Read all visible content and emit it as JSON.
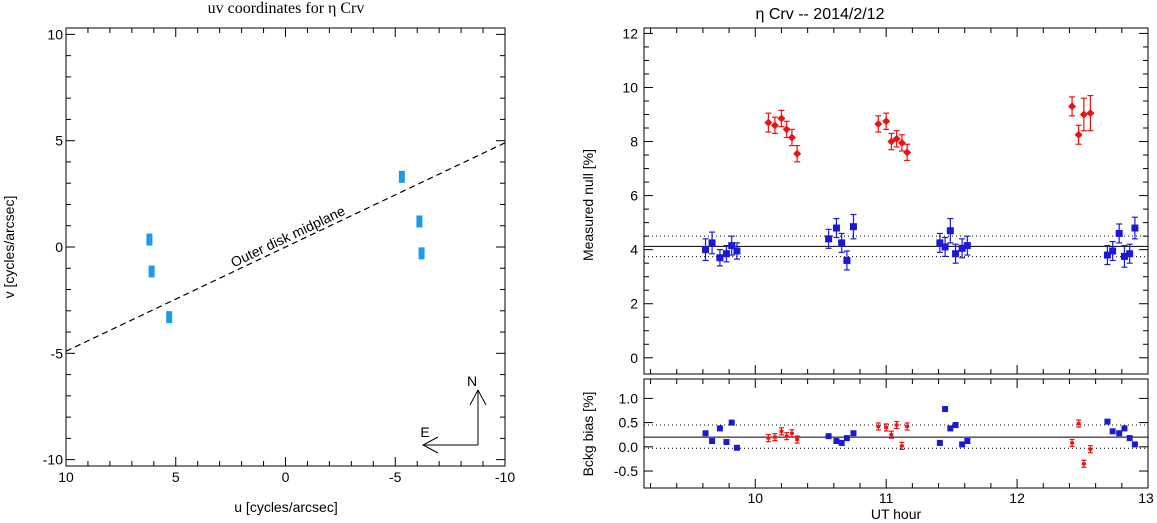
{
  "chart_data": [
    {
      "type": "scatter",
      "title": "uv coordinates for η Crv",
      "xlabel": "u [cycles/arcsec]",
      "ylabel": "v [cycles/arcsec]",
      "xlim": [
        10,
        -10
      ],
      "ylim": [
        -10.3,
        10.3
      ],
      "xticks": [
        "10",
        "5",
        "0",
        "-5",
        "-10"
      ],
      "yticks": [
        "10",
        "5",
        "0",
        "-5",
        "-10"
      ],
      "color": "#1f9be6",
      "points": [
        {
          "x": 6.2,
          "y": 0.35
        },
        {
          "x": 6.1,
          "y": -1.15
        },
        {
          "x": 5.3,
          "y": -3.3
        },
        {
          "x": -5.3,
          "y": 3.3
        },
        {
          "x": -6.1,
          "y": 1.2
        },
        {
          "x": -6.2,
          "y": -0.3
        }
      ],
      "midplane": {
        "label": "Outer disk midplane",
        "x": [
          10,
          -10
        ],
        "y": [
          -4.9,
          4.9
        ]
      },
      "compass": {
        "north": "N",
        "east": "E"
      }
    },
    {
      "type": "scatter",
      "title": "η Crv -- 2014/2/12",
      "xlabel": "UT hour",
      "ylabel": "Measured null [%]",
      "xlim": [
        9.15,
        13.0
      ],
      "ylim": [
        -0.6,
        12.2
      ],
      "xticks": [
        "10",
        "11",
        "12",
        "13"
      ],
      "yticks": [
        "0",
        "2",
        "4",
        "6",
        "8",
        "10",
        "12"
      ],
      "reference_lines": {
        "solid": 4.12,
        "dotted": [
          3.74,
          4.5
        ]
      },
      "series": [
        {
          "color": "#ee1111",
          "points": [
            {
              "x": 10.1,
              "y": 8.7,
              "err": 0.35
            },
            {
              "x": 10.15,
              "y": 8.6,
              "err": 0.3
            },
            {
              "x": 10.2,
              "y": 8.85,
              "err": 0.3
            },
            {
              "x": 10.24,
              "y": 8.45,
              "err": 0.3
            },
            {
              "x": 10.28,
              "y": 8.15,
              "err": 0.3
            },
            {
              "x": 10.32,
              "y": 7.55,
              "err": 0.3
            },
            {
              "x": 10.94,
              "y": 8.65,
              "err": 0.3
            },
            {
              "x": 11.0,
              "y": 8.75,
              "err": 0.3
            },
            {
              "x": 11.04,
              "y": 8.0,
              "err": 0.3
            },
            {
              "x": 11.08,
              "y": 8.1,
              "err": 0.3
            },
            {
              "x": 11.12,
              "y": 7.95,
              "err": 0.3
            },
            {
              "x": 11.16,
              "y": 7.6,
              "err": 0.3
            },
            {
              "x": 12.42,
              "y": 9.3,
              "err": 0.35
            },
            {
              "x": 12.47,
              "y": 8.25,
              "err": 0.35
            },
            {
              "x": 12.51,
              "y": 9.0,
              "err": 0.6
            },
            {
              "x": 12.56,
              "y": 9.05,
              "err": 0.65
            }
          ]
        },
        {
          "color": "#1a1ad6",
          "points": [
            {
              "x": 9.62,
              "y": 4.0,
              "err": 0.4
            },
            {
              "x": 9.67,
              "y": 4.25,
              "err": 0.4
            },
            {
              "x": 9.73,
              "y": 3.7,
              "err": 0.3
            },
            {
              "x": 9.78,
              "y": 3.85,
              "err": 0.3
            },
            {
              "x": 9.82,
              "y": 4.15,
              "err": 0.35
            },
            {
              "x": 9.86,
              "y": 3.95,
              "err": 0.3
            },
            {
              "x": 10.56,
              "y": 4.4,
              "err": 0.35
            },
            {
              "x": 10.62,
              "y": 4.8,
              "err": 0.35
            },
            {
              "x": 10.66,
              "y": 4.25,
              "err": 0.35
            },
            {
              "x": 10.7,
              "y": 3.6,
              "err": 0.35
            },
            {
              "x": 10.75,
              "y": 4.85,
              "err": 0.45
            },
            {
              "x": 11.41,
              "y": 4.25,
              "err": 0.35
            },
            {
              "x": 11.45,
              "y": 4.1,
              "err": 0.35
            },
            {
              "x": 11.49,
              "y": 4.7,
              "err": 0.45
            },
            {
              "x": 11.53,
              "y": 3.85,
              "err": 0.35
            },
            {
              "x": 11.58,
              "y": 4.05,
              "err": 0.35
            },
            {
              "x": 11.62,
              "y": 4.15,
              "err": 0.35
            },
            {
              "x": 12.69,
              "y": 3.8,
              "err": 0.35
            },
            {
              "x": 12.73,
              "y": 3.95,
              "err": 0.35
            },
            {
              "x": 12.78,
              "y": 4.6,
              "err": 0.35
            },
            {
              "x": 12.82,
              "y": 3.75,
              "err": 0.4
            },
            {
              "x": 12.86,
              "y": 3.85,
              "err": 0.35
            },
            {
              "x": 12.9,
              "y": 4.8,
              "err": 0.4
            }
          ]
        }
      ]
    },
    {
      "type": "scatter",
      "xlabel": "UT hour",
      "ylabel": "Bckg bias [%]",
      "xlim": [
        9.15,
        13.0
      ],
      "ylim": [
        -0.85,
        1.4
      ],
      "xticks": [
        "10",
        "11",
        "12",
        "13"
      ],
      "yticks": [
        "1.0",
        "0.5",
        "0.0",
        "-0.5"
      ],
      "reference_lines": {
        "solid": 0.2,
        "dotted": [
          0.45,
          -0.03
        ]
      },
      "series": [
        {
          "color": "#1a1ad6",
          "points": [
            {
              "x": 9.62,
              "y": 0.28
            },
            {
              "x": 9.67,
              "y": 0.12
            },
            {
              "x": 9.73,
              "y": 0.38
            },
            {
              "x": 9.78,
              "y": 0.1
            },
            {
              "x": 9.82,
              "y": 0.5
            },
            {
              "x": 9.86,
              "y": -0.02
            },
            {
              "x": 10.56,
              "y": 0.22
            },
            {
              "x": 10.62,
              "y": 0.12
            },
            {
              "x": 10.66,
              "y": 0.08
            },
            {
              "x": 10.7,
              "y": 0.18
            },
            {
              "x": 10.75,
              "y": 0.28
            },
            {
              "x": 11.41,
              "y": 0.08
            },
            {
              "x": 11.45,
              "y": 0.78
            },
            {
              "x": 11.49,
              "y": 0.38
            },
            {
              "x": 11.53,
              "y": 0.45
            },
            {
              "x": 11.58,
              "y": 0.05
            },
            {
              "x": 11.62,
              "y": 0.12
            },
            {
              "x": 12.69,
              "y": 0.52
            },
            {
              "x": 12.73,
              "y": 0.32
            },
            {
              "x": 12.78,
              "y": 0.28
            },
            {
              "x": 12.82,
              "y": 0.38
            },
            {
              "x": 12.86,
              "y": 0.18
            },
            {
              "x": 12.9,
              "y": 0.05
            }
          ]
        },
        {
          "color": "#ee1111",
          "points": [
            {
              "x": 10.1,
              "y": 0.18
            },
            {
              "x": 10.15,
              "y": 0.2
            },
            {
              "x": 10.2,
              "y": 0.32
            },
            {
              "x": 10.24,
              "y": 0.22
            },
            {
              "x": 10.28,
              "y": 0.28
            },
            {
              "x": 10.32,
              "y": 0.15
            },
            {
              "x": 10.94,
              "y": 0.42
            },
            {
              "x": 11.0,
              "y": 0.4
            },
            {
              "x": 11.04,
              "y": 0.25
            },
            {
              "x": 11.08,
              "y": 0.45
            },
            {
              "x": 11.12,
              "y": 0.02
            },
            {
              "x": 11.16,
              "y": 0.42
            },
            {
              "x": 12.42,
              "y": 0.08
            },
            {
              "x": 12.47,
              "y": 0.48
            },
            {
              "x": 12.51,
              "y": -0.35
            },
            {
              "x": 12.56,
              "y": -0.05
            }
          ]
        }
      ]
    }
  ]
}
